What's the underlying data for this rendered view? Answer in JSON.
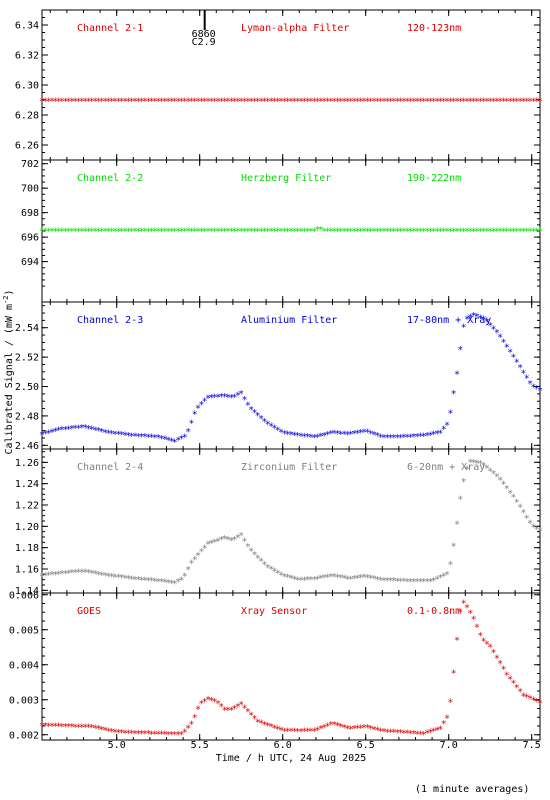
{
  "chart_data": [
    {
      "type": "scatter",
      "channel": "Channel 2-1",
      "filter": "Lyman-alpha Filter",
      "band": "120-123nm",
      "color": "#dd0000",
      "ylim": [
        6.25,
        6.35
      ],
      "yticks": [
        "6.26",
        "6.28",
        "6.30",
        "6.32",
        "6.34"
      ],
      "yvals": [
        6.26,
        6.28,
        6.3,
        6.32,
        6.34
      ],
      "marker_note": {
        "line1": "6860",
        "line2": "C2.9",
        "x": 5.53
      },
      "series": [
        {
          "x": [
            4.55,
            7.55
          ],
          "y": [
            6.289,
            6.289
          ]
        }
      ]
    },
    {
      "type": "scatter",
      "channel": "Channel 2-2",
      "filter": "Herzberg Filter",
      "band": "190-222nm",
      "color": "#00dd00",
      "ylim": [
        690.7,
        702.3
      ],
      "yticks": [
        "694",
        "696",
        "698",
        "700",
        "702"
      ],
      "yvals": [
        694,
        696,
        698,
        700,
        702
      ],
      "series": [
        {
          "x": [
            4.55,
            6.2,
            6.22,
            6.24,
            7.55
          ],
          "y": [
            696.45,
            696.45,
            696.7,
            696.45,
            696.45
          ]
        }
      ]
    },
    {
      "type": "scatter",
      "channel": "Channel 2-3",
      "filter": "Aluminium Filter",
      "band": "17-80nm + Xray",
      "color": "#0000dd",
      "ylim": [
        2.4575,
        2.5575
      ],
      "yticks": [
        "2.46",
        "2.48",
        "2.50",
        "2.52",
        "2.54"
      ],
      "yvals": [
        2.46,
        2.48,
        2.5,
        2.52,
        2.54
      ],
      "series": [
        {
          "x": [
            4.55,
            4.65,
            4.8,
            4.95,
            5.1,
            5.25,
            5.35,
            5.42,
            5.48,
            5.55,
            5.65,
            5.7,
            5.75,
            5.8,
            5.9,
            6.0,
            6.1,
            6.2,
            6.3,
            6.4,
            6.5,
            6.6,
            6.7,
            6.85,
            6.95,
            7.0,
            7.03,
            7.06,
            7.08,
            7.1,
            7.15,
            7.22,
            7.3,
            7.4,
            7.5,
            7.55
          ],
          "y": [
            2.467,
            2.47,
            2.472,
            2.468,
            2.466,
            2.465,
            2.462,
            2.466,
            2.484,
            2.492,
            2.493,
            2.492,
            2.495,
            2.485,
            2.475,
            2.468,
            2.466,
            2.465,
            2.468,
            2.467,
            2.469,
            2.465,
            2.465,
            2.466,
            2.468,
            2.475,
            2.495,
            2.515,
            2.535,
            2.545,
            2.548,
            2.545,
            2.535,
            2.518,
            2.5,
            2.497
          ]
        }
      ]
    },
    {
      "type": "scatter",
      "channel": "Channel 2-4",
      "filter": "Zirconium Filter",
      "band": "6-20nm + Xray",
      "color": "#808080",
      "ylim": [
        1.1375,
        1.2725
      ],
      "yticks": [
        "1.14",
        "1.16",
        "1.18",
        "1.20",
        "1.22",
        "1.24",
        "1.26"
      ],
      "yvals": [
        1.14,
        1.16,
        1.18,
        1.2,
        1.22,
        1.24,
        1.26
      ],
      "series": [
        {
          "x": [
            4.55,
            4.65,
            4.8,
            4.95,
            5.1,
            5.25,
            5.35,
            5.4,
            5.45,
            5.55,
            5.65,
            5.7,
            5.75,
            5.8,
            5.9,
            6.0,
            6.1,
            6.2,
            6.3,
            6.4,
            6.5,
            6.6,
            6.75,
            6.9,
            7.0,
            7.04,
            7.07,
            7.1,
            7.13,
            7.2,
            7.3,
            7.4,
            7.5,
            7.55
          ],
          "y": [
            1.153,
            1.155,
            1.157,
            1.153,
            1.15,
            1.148,
            1.146,
            1.15,
            1.165,
            1.183,
            1.188,
            1.186,
            1.191,
            1.178,
            1.162,
            1.153,
            1.149,
            1.15,
            1.153,
            1.15,
            1.152,
            1.149,
            1.148,
            1.148,
            1.155,
            1.19,
            1.225,
            1.25,
            1.26,
            1.258,
            1.245,
            1.225,
            1.2,
            1.195
          ]
        }
      ]
    },
    {
      "type": "scatter",
      "channel": "GOES",
      "filter": "Xray Sensor",
      "band": "0.1-0.8nm",
      "color": "#dd0000",
      "ylim": [
        0.00185,
        0.00605
      ],
      "yticks": [
        "0.002",
        "0.003",
        "0.004",
        "0.005",
        "0.006"
      ],
      "yvals": [
        0.002,
        0.003,
        0.004,
        0.005,
        0.006
      ],
      "series": [
        {
          "x": [
            4.55,
            4.7,
            4.85,
            5.0,
            5.15,
            5.3,
            5.4,
            5.46,
            5.5,
            5.55,
            5.6,
            5.65,
            5.7,
            5.75,
            5.85,
            6.0,
            6.1,
            6.2,
            6.3,
            6.4,
            6.5,
            6.6,
            6.7,
            6.85,
            6.95,
            7.0,
            7.02,
            7.04,
            7.06,
            7.08,
            7.1,
            7.15,
            7.2,
            7.25,
            7.35,
            7.45,
            7.55
          ],
          "y": [
            0.00225,
            0.00222,
            0.0022,
            0.00205,
            0.00202,
            0.002,
            0.002,
            0.00235,
            0.00285,
            0.003,
            0.00292,
            0.0027,
            0.0027,
            0.00285,
            0.00235,
            0.0021,
            0.00208,
            0.0021,
            0.0023,
            0.00215,
            0.0022,
            0.00208,
            0.00205,
            0.002,
            0.00215,
            0.00255,
            0.0033,
            0.0042,
            0.0052,
            0.0058,
            0.0057,
            0.0053,
            0.0047,
            0.0045,
            0.0037,
            0.0031,
            0.0029
          ]
        }
      ]
    }
  ],
  "xaxis": {
    "label": "Time / h UTC, 24 Aug 2025",
    "xlim": [
      4.55,
      7.55
    ],
    "ticks": [
      "5.0",
      "5.5",
      "6.0",
      "6.5",
      "7.0",
      "7.5"
    ],
    "tick_values": [
      5.0,
      5.5,
      6.0,
      6.5,
      7.0,
      7.5
    ]
  },
  "yaxis": {
    "label_main": "Calibrated Signal / (mW m",
    "label_sup": "-2",
    "label_end": ")"
  },
  "footer": "(1 minute averages)"
}
